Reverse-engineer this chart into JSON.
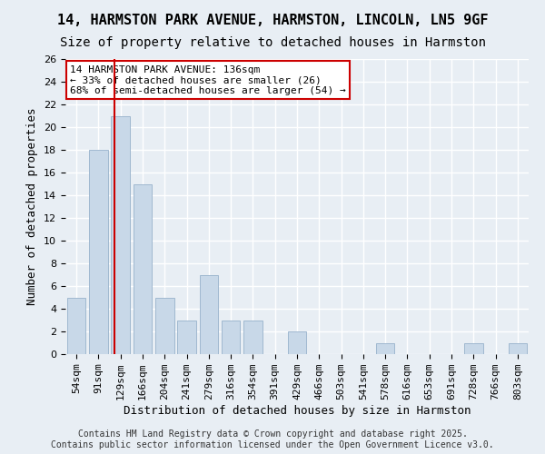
{
  "title_line1": "14, HARMSTON PARK AVENUE, HARMSTON, LINCOLN, LN5 9GF",
  "title_line2": "Size of property relative to detached houses in Harmston",
  "xlabel": "Distribution of detached houses by size in Harmston",
  "ylabel": "Number of detached properties",
  "categories": [
    "54sqm",
    "91sqm",
    "129sqm",
    "166sqm",
    "204sqm",
    "241sqm",
    "279sqm",
    "316sqm",
    "354sqm",
    "391sqm",
    "429sqm",
    "466sqm",
    "503sqm",
    "541sqm",
    "578sqm",
    "616sqm",
    "653sqm",
    "691sqm",
    "728sqm",
    "766sqm",
    "803sqm"
  ],
  "values": [
    5,
    18,
    21,
    15,
    5,
    3,
    7,
    3,
    3,
    0,
    2,
    0,
    0,
    0,
    1,
    0,
    0,
    0,
    1,
    0,
    1
  ],
  "bar_color": "#c8d8e8",
  "bar_edge_color": "#a0b8d0",
  "vline_color": "#cc0000",
  "vline_pos": 1.736,
  "annotation_box_text": "14 HARMSTON PARK AVENUE: 136sqm\n← 33% of detached houses are smaller (26)\n68% of semi-detached houses are larger (54) →",
  "ylim": [
    0,
    26
  ],
  "yticks": [
    0,
    2,
    4,
    6,
    8,
    10,
    12,
    14,
    16,
    18,
    20,
    22,
    24,
    26
  ],
  "background_color": "#e8eef4",
  "plot_bg_color": "#e8eef4",
  "grid_color": "#ffffff",
  "footer_text": "Contains HM Land Registry data © Crown copyright and database right 2025.\nContains public sector information licensed under the Open Government Licence v3.0.",
  "title_fontsize": 11,
  "subtitle_fontsize": 10,
  "axis_label_fontsize": 9,
  "tick_fontsize": 8,
  "annotation_fontsize": 8,
  "footer_fontsize": 7
}
